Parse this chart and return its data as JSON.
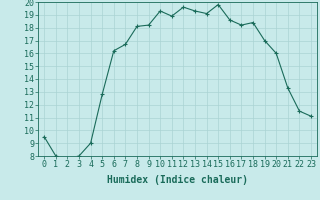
{
  "x": [
    0,
    1,
    2,
    3,
    4,
    5,
    6,
    7,
    8,
    9,
    10,
    11,
    12,
    13,
    14,
    15,
    16,
    17,
    18,
    19,
    20,
    21,
    22,
    23
  ],
  "y": [
    9.5,
    8.0,
    7.8,
    8.0,
    9.0,
    12.8,
    16.2,
    16.7,
    18.1,
    18.2,
    19.3,
    18.9,
    19.6,
    19.3,
    19.1,
    19.8,
    18.6,
    18.2,
    18.4,
    17.0,
    16.0,
    13.3,
    11.5,
    11.1
  ],
  "line_color": "#1a6b5a",
  "marker": "+",
  "marker_size": 3,
  "xlabel": "Humidex (Indice chaleur)",
  "xlim": [
    -0.5,
    23.5
  ],
  "ylim": [
    8,
    20
  ],
  "yticks": [
    8,
    9,
    10,
    11,
    12,
    13,
    14,
    15,
    16,
    17,
    18,
    19,
    20
  ],
  "xticks": [
    0,
    1,
    2,
    3,
    4,
    5,
    6,
    7,
    8,
    9,
    10,
    11,
    12,
    13,
    14,
    15,
    16,
    17,
    18,
    19,
    20,
    21,
    22,
    23
  ],
  "bg_color": "#c8eaea",
  "grid_color": "#aad4d4",
  "tick_color": "#1a6b5a",
  "label_fontsize": 7,
  "tick_fontsize": 6
}
